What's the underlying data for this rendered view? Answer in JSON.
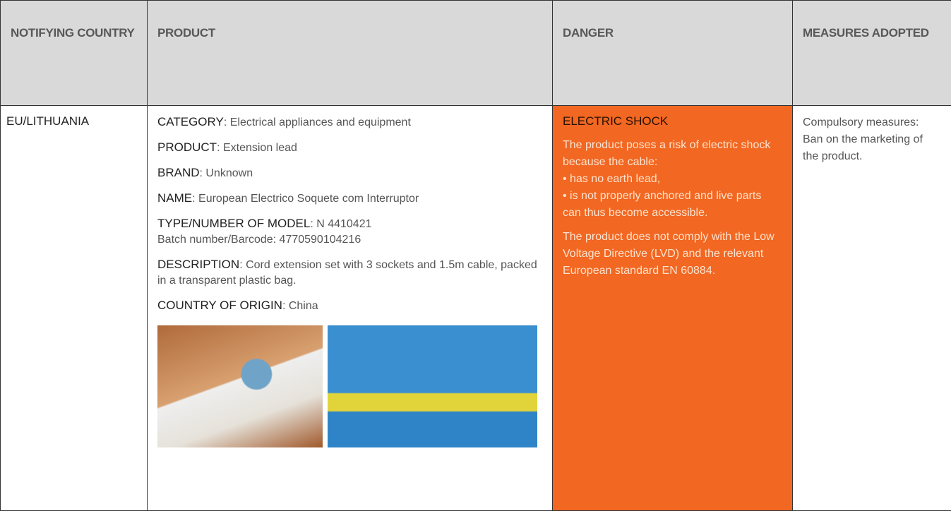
{
  "table": {
    "headers": [
      "NOTIFYING COUNTRY",
      "PRODUCT",
      "DANGER",
      "MEASURES ADOPTED"
    ],
    "row": {
      "country": "EU/LITHUANIA",
      "product": [
        {
          "label": "CATEGORY",
          "value": ": Electrical appliances and equipment"
        },
        {
          "label": "PRODUCT",
          "value": ": Extension lead"
        },
        {
          "label": "BRAND",
          "value": ": Unknown"
        },
        {
          "label": "NAME",
          "value": ": European Electrico Soquete com Interruptor"
        },
        {
          "label": "TYPE/NUMBER OF MODEL",
          "value": ": N 4410421",
          "extra": "Batch number/Barcode: 4770590104216"
        },
        {
          "label": "DESCRIPTION",
          "value": ": Cord extension set with 3 sockets and 1.5m cable, packed in a transparent plastic bag."
        },
        {
          "label": "COUNTRY OF ORIGIN",
          "value": ": China"
        }
      ],
      "danger": {
        "title": "ELECTRIC SHOCK",
        "intro": "The product poses a risk of electric shock because the cable:",
        "bullets": [
          "• has no earth lead,",
          "• is not properly anchored and live parts can thus become accessible."
        ],
        "conclusion": "The product does not comply with the Low Voltage Directive (LVD) and the relevant European standard EN 60884."
      },
      "measures": "Compulsory measures: Ban on the marketing of the product."
    }
  }
}
